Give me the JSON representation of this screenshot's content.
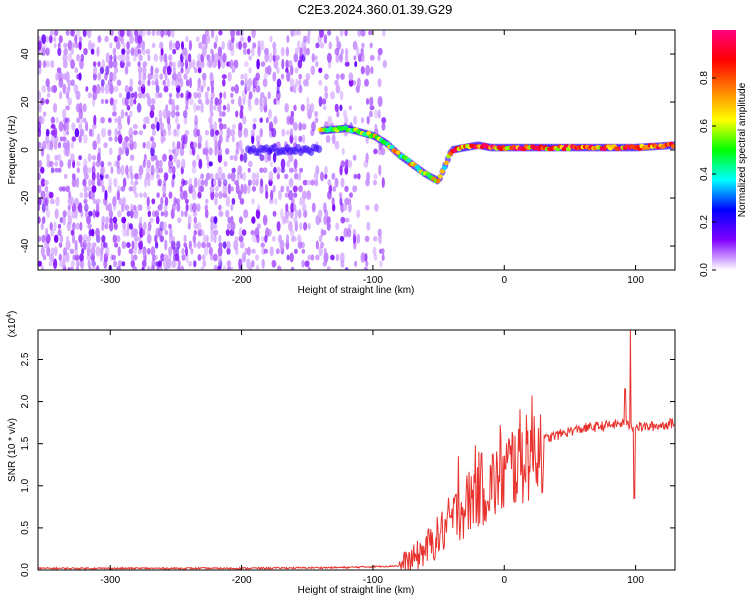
{
  "chart_data": [
    {
      "type": "heatmap",
      "title": "C2E3.2024.360.01.39.G29",
      "xlabel": "Height of straight line (km)",
      "ylabel": "Frequency (Hz)",
      "xlim": [
        -355,
        130
      ],
      "ylim": [
        -50,
        50
      ],
      "x_ticks": [
        -300,
        -200,
        -100,
        0,
        100
      ],
      "x_tick_labels": [
        "-300",
        "-200",
        "-100",
        "0",
        "100"
      ],
      "y_ticks": [
        -40,
        -20,
        0,
        20,
        40
      ],
      "y_tick_labels": [
        "-40",
        "-20",
        "0",
        "20",
        "40"
      ],
      "colorbar": {
        "label": "Normalized spectral amplitude",
        "range": [
          0,
          1
        ],
        "ticks": [
          0.0,
          0.2,
          0.4,
          0.6,
          0.8
        ],
        "tick_labels": [
          "0.0",
          "0.2",
          "0.4",
          "0.6",
          "0.8"
        ],
        "colormap": [
          "#ffffff",
          "#8000ff",
          "#0000ff",
          "#00ffff",
          "#00ff00",
          "#ffff00",
          "#ff8000",
          "#ff0000",
          "#ff0080"
        ]
      },
      "ridge": {
        "x": [
          -140,
          -120,
          -100,
          -90,
          -80,
          -70,
          -60,
          -50,
          -40,
          -30,
          -20,
          -10,
          0,
          20,
          40,
          60,
          80,
          100,
          130
        ],
        "y": [
          8,
          9,
          6,
          3,
          -2,
          -6,
          -10,
          -13,
          0,
          1,
          2,
          1,
          1,
          1,
          1,
          1,
          1,
          1,
          2
        ]
      },
      "grid": false
    },
    {
      "type": "line",
      "ylabel": "SNR (10 * v/v)",
      "y_exponent": "(x10",
      "y_exponent_power": "4",
      "y_exponent_close": ")",
      "xlabel": "Height of straight line (km)",
      "xlim": [
        -355,
        130
      ],
      "ylim": [
        0,
        2.85
      ],
      "x_ticks": [
        -300,
        -200,
        -100,
        0,
        100
      ],
      "x_tick_labels": [
        "-300",
        "-200",
        "-100",
        "0",
        "100"
      ],
      "y_ticks": [
        0,
        0.5,
        1.0,
        1.5,
        2.0,
        2.5
      ],
      "y_tick_labels": [
        "0.0",
        "0.5",
        "1.0",
        "1.5",
        "2.0",
        "2.5"
      ],
      "color": "#e8312c",
      "series": [
        {
          "x": [
            -355,
            -300,
            -200,
            -120,
            -80,
            -70,
            -60,
            -50,
            -40,
            -30,
            -20,
            -10,
            0,
            10,
            20,
            30,
            40,
            50,
            60,
            70,
            80,
            90,
            100,
            110,
            120,
            130
          ],
          "y": [
            0.02,
            0.02,
            0.02,
            0.03,
            0.05,
            0.12,
            0.25,
            0.4,
            0.6,
            0.75,
            0.95,
            1.0,
            1.15,
            1.3,
            1.45,
            1.55,
            1.6,
            1.65,
            1.68,
            1.7,
            1.72,
            1.74,
            1.7,
            1.7,
            1.72,
            1.75
          ]
        }
      ],
      "peaks": [
        {
          "x": -35,
          "y": 1.35
        },
        {
          "x": -22,
          "y": 1.48
        },
        {
          "x": -3,
          "y": 1.72
        },
        {
          "x": 92,
          "y": 2.15
        },
        {
          "x": 96,
          "y": 2.85
        },
        {
          "x": 99,
          "y": 0.85
        }
      ],
      "grid": false
    }
  ]
}
